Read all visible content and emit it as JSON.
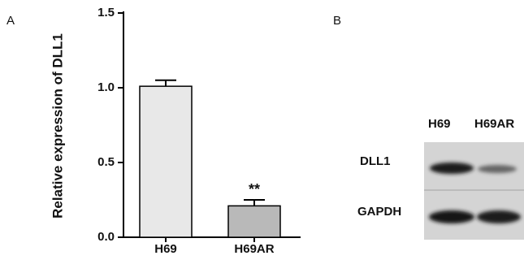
{
  "chart_data": {
    "type": "bar",
    "y_label": "Relative expression of DLL1",
    "categories": [
      "H69",
      "H69AR"
    ],
    "values": [
      1.01,
      0.21
    ],
    "errors": [
      0.04,
      0.04
    ],
    "colors": [
      "#e8e8e8",
      "#b9b9b9"
    ],
    "significance_labels": [
      null,
      "**"
    ],
    "ylim": [
      0,
      1.5
    ],
    "yticks": [
      {
        "value": 0,
        "label": "0.0"
      },
      {
        "value": 0.5,
        "label": "0.5"
      },
      {
        "value": 1,
        "label": "1.0"
      },
      {
        "value": 1.5,
        "label": "1.5"
      }
    ]
  },
  "panel_labels": [
    "A",
    "B"
  ],
  "blot": {
    "lanes": [
      "H69",
      "H69AR"
    ],
    "rows": [
      "DLL1",
      "GAPDH"
    ]
  }
}
